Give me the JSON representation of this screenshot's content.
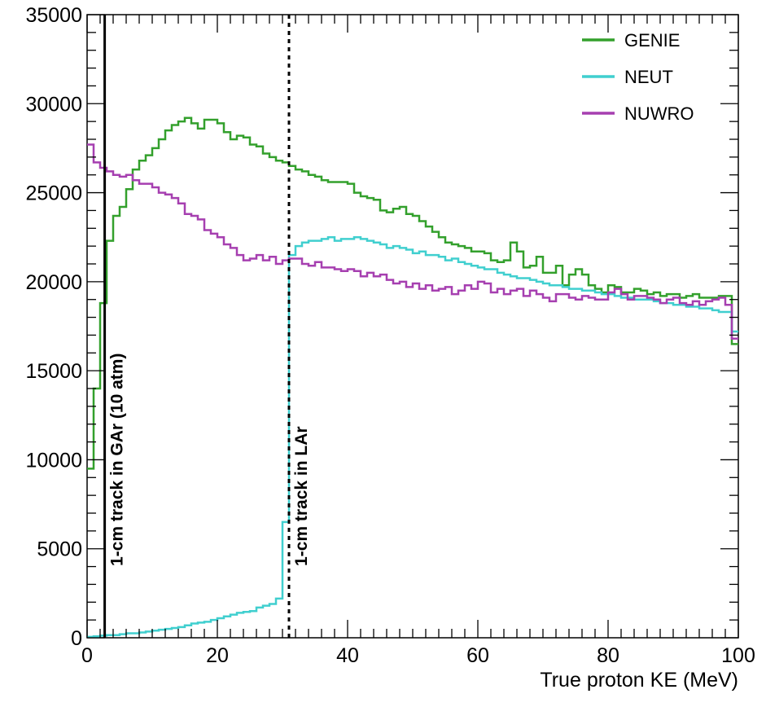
{
  "chart_data": {
    "type": "line",
    "xlabel": "True proton KE (MeV)",
    "ylabel": "",
    "xlim": [
      0,
      100
    ],
    "ylim": [
      0,
      35000
    ],
    "xticks": [
      "0",
      "20",
      "40",
      "60",
      "80",
      "100"
    ],
    "yticks": [
      "0",
      "5000",
      "10000",
      "15000",
      "20000",
      "25000",
      "30000",
      "35000"
    ],
    "grid": false,
    "legend_position": "top-right",
    "bin_edges_start": 0,
    "bin_width": 1,
    "series": [
      {
        "name": "GENIE",
        "color": "#33a02c",
        "values": [
          9500,
          14000,
          18800,
          22300,
          23700,
          24200,
          25200,
          26300,
          26800,
          27100,
          27500,
          28000,
          28500,
          28800,
          29000,
          29200,
          28900,
          28600,
          29100,
          29100,
          28900,
          28400,
          28000,
          28200,
          28100,
          27700,
          27600,
          27200,
          27000,
          26800,
          26700,
          26500,
          26300,
          26200,
          26000,
          25900,
          25700,
          25600,
          25600,
          25600,
          25500,
          25000,
          24800,
          24700,
          24600,
          24000,
          23900,
          24100,
          24200,
          23800,
          23700,
          23400,
          23100,
          22800,
          22500,
          22200,
          22100,
          22000,
          21900,
          21700,
          21700,
          21600,
          21200,
          21100,
          21200,
          22200,
          21700,
          20800,
          20900,
          21400,
          20500,
          20500,
          20900,
          19800,
          20400,
          20700,
          20400,
          19800,
          19600,
          19400,
          19800,
          19700,
          19400,
          19400,
          19600,
          19500,
          19300,
          19400,
          19200,
          19300,
          19300,
          19100,
          19200,
          19300,
          19100,
          19100,
          19100,
          19200,
          19200,
          16500
        ]
      },
      {
        "name": "NEUT",
        "color": "#40cfcf",
        "values": [
          50,
          80,
          120,
          150,
          150,
          200,
          250,
          250,
          300,
          350,
          400,
          450,
          500,
          550,
          600,
          700,
          800,
          850,
          900,
          1000,
          1100,
          1200,
          1300,
          1400,
          1450,
          1500,
          1700,
          1800,
          1900,
          2200,
          6500,
          21500,
          22000,
          22200,
          22300,
          22300,
          22400,
          22500,
          22300,
          22400,
          22400,
          22500,
          22400,
          22300,
          22200,
          22100,
          21900,
          22000,
          21900,
          21800,
          21600,
          21700,
          21500,
          21500,
          21400,
          21200,
          21300,
          21100,
          21000,
          20900,
          20800,
          20700,
          20700,
          20500,
          20400,
          20300,
          20200,
          20200,
          20100,
          20000,
          19900,
          19800,
          19800,
          19700,
          19600,
          19600,
          19500,
          19500,
          19400,
          19300,
          19300,
          19200,
          19100,
          19100,
          19000,
          19000,
          19000,
          18900,
          18800,
          18800,
          18700,
          18700,
          18600,
          18600,
          18500,
          18500,
          18400,
          18300,
          18300,
          17200
        ]
      },
      {
        "name": "NUWRO",
        "color": "#a63fb0",
        "values": [
          27700,
          26700,
          26400,
          26200,
          26000,
          25900,
          26000,
          25700,
          25500,
          25500,
          25300,
          25000,
          24900,
          24700,
          24400,
          23800,
          23700,
          23500,
          22900,
          22700,
          22500,
          22100,
          21900,
          21500,
          21200,
          21300,
          21500,
          21200,
          21400,
          21000,
          21200,
          21300,
          21300,
          21000,
          20900,
          21100,
          20800,
          20800,
          20700,
          20600,
          20700,
          20600,
          20300,
          20500,
          20300,
          20400,
          20100,
          19900,
          20000,
          19700,
          19900,
          19600,
          19800,
          19500,
          19600,
          19700,
          19300,
          19500,
          19800,
          19600,
          20000,
          19900,
          19400,
          19600,
          19300,
          19500,
          19600,
          19200,
          19500,
          19300,
          19100,
          18900,
          19300,
          19300,
          19100,
          19000,
          19200,
          19100,
          19000,
          19000,
          19400,
          19600,
          19300,
          19000,
          19200,
          19200,
          19100,
          19000,
          18800,
          19000,
          19100,
          18800,
          18700,
          18900,
          18700,
          18900,
          19000,
          19100,
          18700,
          16800
        ]
      }
    ],
    "annotations": [
      {
        "x": 2.7,
        "style": "solid",
        "label": "1-cm track in GAr (10 atm)"
      },
      {
        "x": 31,
        "style": "dashed",
        "label": "1-cm track in LAr"
      }
    ]
  }
}
